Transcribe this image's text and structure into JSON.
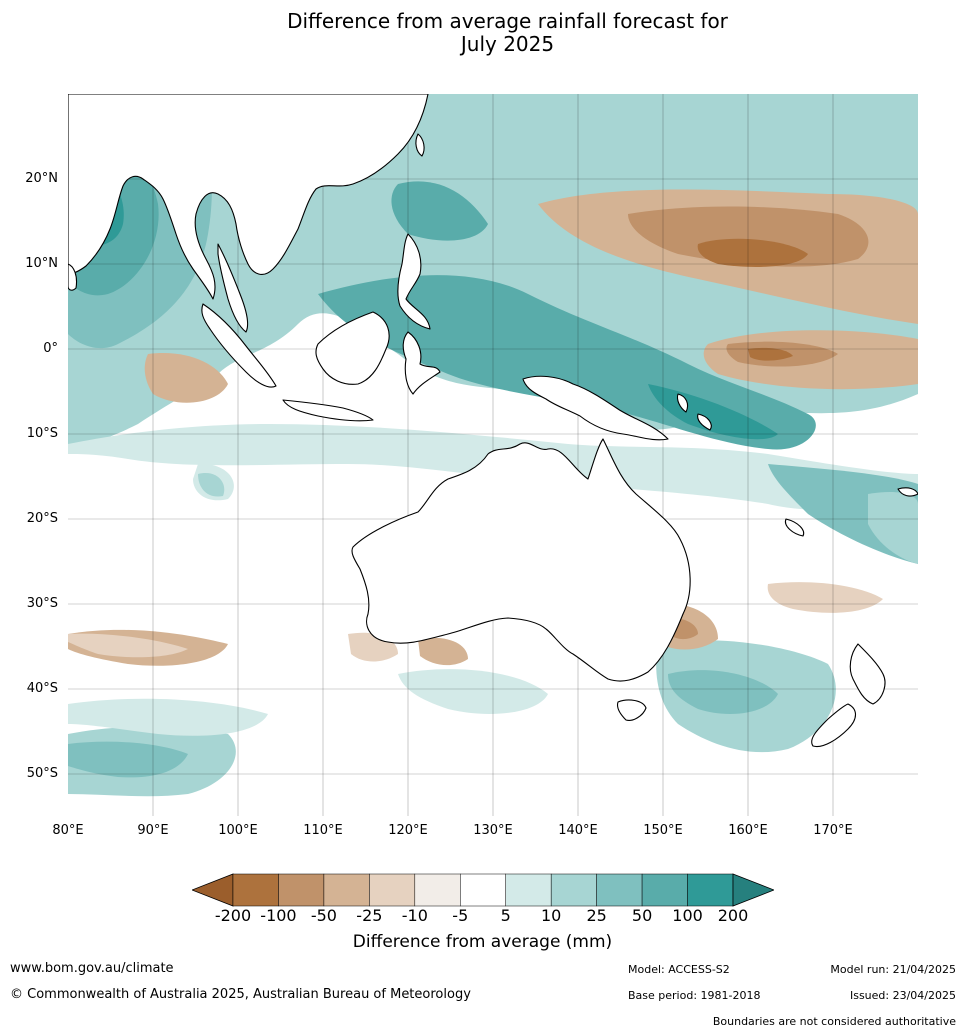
{
  "title_line1": "Difference from average rainfall forecast for",
  "title_line2": "July 2025",
  "map": {
    "lat_labels": [
      "20°N",
      "10°N",
      "0°",
      "10°S",
      "20°S",
      "30°S",
      "40°S",
      "50°S"
    ],
    "lon_labels": [
      "80°E",
      "90°E",
      "100°E",
      "110°E",
      "120°E",
      "130°E",
      "140°E",
      "150°E",
      "160°E",
      "170°E"
    ]
  },
  "legend": {
    "title": "Difference from average (mm)",
    "ticks": [
      "-200",
      "-100",
      "-50",
      "-25",
      "-10",
      "-5",
      "5",
      "10",
      "25",
      "50",
      "100",
      "200"
    ],
    "colors": [
      "#9b5e2c",
      "#ad723d",
      "#c0926a",
      "#d4b394",
      "#e6d2c0",
      "#f2ede8",
      "#ffffff",
      "#d3eae8",
      "#a7d5d3",
      "#7fc0bf",
      "#59acaa",
      "#2f9a97",
      "#26807e"
    ]
  },
  "footer": {
    "website": "www.bom.gov.au/climate",
    "copyright": "© Commonwealth of Australia 2025, Australian Bureau of Meteorology",
    "model": "Model: ACCESS-S2",
    "base_period": "Base period: 1981-2018",
    "model_run": "Model run: 21/04/2025",
    "issued": "Issued: 23/04/2025",
    "disclaimer": "Boundaries are not considered authoritative"
  }
}
